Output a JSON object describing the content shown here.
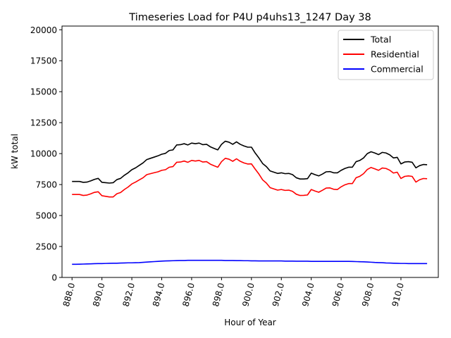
{
  "chart_data": {
    "type": "line",
    "title": "Timeseries Load for P4U p4uhs13_1247  Day 38",
    "xlabel": "Hour of Year",
    "ylabel": "kW total",
    "xlim": [
      887.33,
      912.5
    ],
    "ylim": [
      0,
      20300
    ],
    "xtick_values": [
      888,
      890,
      892,
      894,
      896,
      898,
      900,
      902,
      904,
      906,
      908,
      910
    ],
    "xtick_labels": [
      "888.0",
      "890.0",
      "892.0",
      "894.0",
      "896.0",
      "898.0",
      "900.0",
      "902.0",
      "904.0",
      "906.0",
      "908.0",
      "910.0"
    ],
    "ytick_values": [
      0,
      2500,
      5000,
      7500,
      10000,
      12500,
      15000,
      17500,
      20000
    ],
    "ytick_labels": [
      "0",
      "2500",
      "5000",
      "7500",
      "10000",
      "12500",
      "15000",
      "17500",
      "20000"
    ],
    "legend_position": "upper right",
    "x": [
      888.0,
      888.25,
      888.5,
      888.75,
      889.0,
      889.25,
      889.5,
      889.75,
      890.0,
      890.25,
      890.5,
      890.75,
      891.0,
      891.25,
      891.5,
      891.75,
      892.0,
      892.25,
      892.5,
      892.75,
      893.0,
      893.25,
      893.5,
      893.75,
      894.0,
      894.25,
      894.5,
      894.75,
      895.0,
      895.25,
      895.5,
      895.75,
      896.0,
      896.25,
      896.5,
      896.75,
      897.0,
      897.25,
      897.5,
      897.75,
      898.0,
      898.25,
      898.5,
      898.75,
      899.0,
      899.25,
      899.5,
      899.75,
      900.0,
      900.25,
      900.5,
      900.75,
      901.0,
      901.25,
      901.5,
      901.75,
      902.0,
      902.25,
      902.5,
      902.75,
      903.0,
      903.25,
      903.5,
      903.75,
      904.0,
      904.25,
      904.5,
      904.75,
      905.0,
      905.25,
      905.5,
      905.75,
      906.0,
      906.25,
      906.5,
      906.75,
      907.0,
      907.25,
      907.5,
      907.75,
      908.0,
      908.25,
      908.5,
      908.75,
      909.0,
      909.25,
      909.5,
      909.75,
      910.0,
      910.25,
      910.5,
      910.75,
      911.0,
      911.25,
      911.5,
      911.75
    ],
    "series": [
      {
        "name": "Total",
        "color": "#000000",
        "values": [
          7750,
          7750,
          7750,
          7680,
          7700,
          7800,
          7920,
          8000,
          7680,
          7650,
          7620,
          7650,
          7900,
          8000,
          8250,
          8450,
          8700,
          8850,
          9050,
          9250,
          9520,
          9620,
          9720,
          9820,
          9950,
          10020,
          10250,
          10300,
          10700,
          10720,
          10800,
          10700,
          10850,
          10800,
          10850,
          10720,
          10750,
          10550,
          10420,
          10300,
          10750,
          11000,
          10920,
          10750,
          10950,
          10750,
          10620,
          10520,
          10520,
          10050,
          9650,
          9200,
          8950,
          8600,
          8500,
          8400,
          8450,
          8380,
          8400,
          8300,
          8050,
          7950,
          7950,
          7980,
          8420,
          8300,
          8200,
          8350,
          8530,
          8550,
          8450,
          8450,
          8650,
          8800,
          8900,
          8900,
          9350,
          9450,
          9650,
          10000,
          10150,
          10050,
          9920,
          10100,
          10050,
          9900,
          9650,
          9700,
          9170,
          9320,
          9350,
          9300,
          8850,
          9030,
          9120,
          9100
        ]
      },
      {
        "name": "Residential",
        "color": "#ff0000",
        "values": [
          6700,
          6700,
          6700,
          6620,
          6650,
          6750,
          6870,
          6920,
          6600,
          6550,
          6500,
          6500,
          6760,
          6860,
          7100,
          7300,
          7550,
          7700,
          7880,
          8050,
          8300,
          8380,
          8460,
          8530,
          8650,
          8700,
          8900,
          8950,
          9300,
          9320,
          9400,
          9300,
          9450,
          9400,
          9450,
          9320,
          9350,
          9150,
          9020,
          8900,
          9350,
          9620,
          9550,
          9380,
          9580,
          9380,
          9250,
          9160,
          9170,
          8750,
          8350,
          7880,
          7620,
          7250,
          7150,
          7050,
          7100,
          7030,
          7050,
          6950,
          6720,
          6620,
          6630,
          6660,
          7100,
          6980,
          6880,
          7040,
          7220,
          7230,
          7120,
          7100,
          7320,
          7480,
          7580,
          7580,
          8050,
          8170,
          8380,
          8720,
          8880,
          8770,
          8650,
          8840,
          8800,
          8660,
          8430,
          8500,
          7990,
          8160,
          8200,
          8160,
          7700,
          7890,
          7990,
          7970
        ]
      },
      {
        "name": "Commercial",
        "color": "#0000ff",
        "values": [
          1060,
          1060,
          1070,
          1080,
          1090,
          1100,
          1110,
          1120,
          1120,
          1130,
          1140,
          1150,
          1150,
          1160,
          1170,
          1180,
          1180,
          1190,
          1200,
          1220,
          1240,
          1260,
          1280,
          1300,
          1320,
          1330,
          1340,
          1350,
          1360,
          1370,
          1370,
          1380,
          1380,
          1380,
          1380,
          1380,
          1380,
          1380,
          1380,
          1380,
          1380,
          1370,
          1370,
          1370,
          1360,
          1360,
          1350,
          1350,
          1340,
          1340,
          1330,
          1330,
          1330,
          1330,
          1330,
          1330,
          1330,
          1320,
          1320,
          1320,
          1310,
          1310,
          1310,
          1310,
          1300,
          1300,
          1300,
          1300,
          1300,
          1300,
          1300,
          1300,
          1300,
          1300,
          1300,
          1290,
          1280,
          1270,
          1260,
          1250,
          1230,
          1210,
          1200,
          1190,
          1170,
          1160,
          1150,
          1140,
          1130,
          1130,
          1120,
          1120,
          1120,
          1120,
          1120,
          1120
        ]
      }
    ]
  }
}
